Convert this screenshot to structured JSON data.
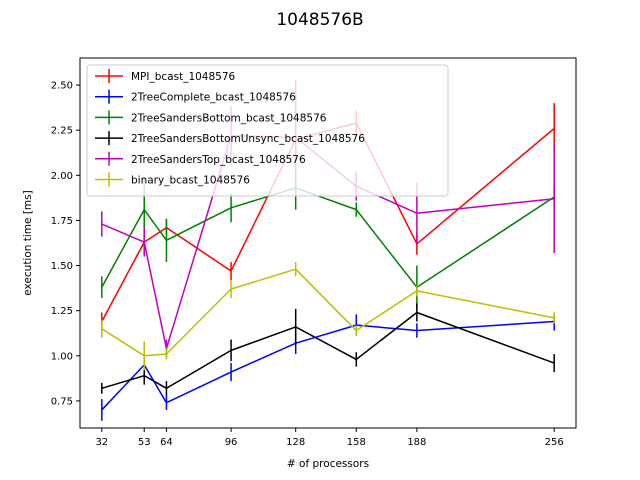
{
  "chart_data": {
    "type": "line",
    "title": "1048576B",
    "xlabel": "# of processors",
    "ylabel": "execution time [ms]",
    "x": [
      32,
      53,
      64,
      96,
      128,
      158,
      188,
      256
    ],
    "xticks": [
      "32",
      "53",
      "64",
      "96",
      "128",
      "158",
      "188",
      "256"
    ],
    "xlim": [
      21.2,
      266.8
    ],
    "ylim": [
      0.6,
      2.65
    ],
    "yticks": [
      "0.75",
      "1.00",
      "1.25",
      "1.50",
      "1.75",
      "2.00",
      "2.25",
      "2.50"
    ],
    "ytick_values": [
      0.75,
      1.0,
      1.25,
      1.5,
      1.75,
      2.0,
      2.25,
      2.5
    ],
    "grid": false,
    "legend_position": "upper-left",
    "series": [
      {
        "name": "MPI_bcast_1048576",
        "color": "#ff0000",
        "values": [
          1.19,
          1.63,
          1.71,
          1.47,
          2.2,
          2.29,
          1.62,
          2.26
        ],
        "errors": [
          0.05,
          0.05,
          0.04,
          0.05,
          0.07,
          0.07,
          0.06,
          0.14
        ]
      },
      {
        "name": "2TreeComplete_bcast_1048576",
        "color": "#0000ff",
        "values": [
          0.7,
          0.95,
          0.74,
          0.91,
          1.07,
          1.17,
          1.14,
          1.19
        ],
        "errors": [
          0.06,
          0.03,
          0.04,
          0.05,
          0.06,
          0.06,
          0.04,
          0.05
        ]
      },
      {
        "name": "2TreeSandersBottom_bcast_1048576",
        "color": "#008000",
        "values": [
          1.38,
          1.81,
          1.64,
          1.82,
          1.93,
          1.81,
          1.38,
          1.88
        ],
        "errors": [
          0.06,
          0.18,
          0.12,
          0.08,
          0.12,
          0.04,
          0.12,
          0.06
        ]
      },
      {
        "name": "2TreeSandersBottomUnsync_bcast_1048576",
        "color": "#000000",
        "values": [
          0.82,
          0.89,
          0.82,
          1.03,
          1.16,
          0.98,
          1.24,
          0.96
        ],
        "errors": [
          0.03,
          0.05,
          0.04,
          0.06,
          0.1,
          0.04,
          0.05,
          0.05
        ]
      },
      {
        "name": "2TreeSandersTop_bcast_1048576",
        "color": "#bf00bf",
        "values": [
          1.73,
          1.63,
          1.04,
          2.22,
          2.21,
          1.94,
          1.79,
          1.87
        ],
        "errors": [
          0.07,
          0.08,
          0.05,
          0.16,
          0.32,
          0.08,
          0.17,
          0.3
        ]
      },
      {
        "name": "binary_bcast_1048576",
        "color": "#bfbf00",
        "values": [
          1.15,
          1.0,
          1.01,
          1.37,
          1.48,
          1.14,
          1.36,
          1.21
        ],
        "errors": [
          0.05,
          0.08,
          0.03,
          0.05,
          0.04,
          0.03,
          0.03,
          0.03
        ]
      }
    ]
  }
}
